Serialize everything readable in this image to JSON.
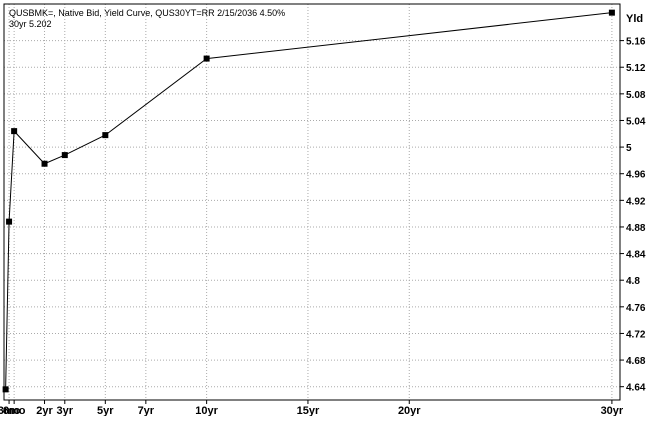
{
  "chart_data": {
    "type": "line",
    "title": "QUSBMK=, Native Bid, Yield Curve, QUS30YT=RR 2/15/2036 4.50%",
    "subtitle": "30yr 5.202",
    "y_unit_label": "Yld",
    "xlabel": "",
    "ylabel": "",
    "x_scale": "years to maturity",
    "xlim": [
      0,
      30.4
    ],
    "ylim": [
      4.62,
      5.215
    ],
    "y_ticks": [
      "5.16",
      "5.12",
      "5.08",
      "5.04",
      "5",
      "4.96",
      "4.92",
      "4.88",
      "4.84",
      "4.8",
      "4.76",
      "4.72",
      "4.68",
      "4.64"
    ],
    "x_ticks": [
      {
        "label": "3mo",
        "years": 0.25
      },
      {
        "label": "6mo",
        "years": 0.5
      },
      {
        "label": "2yr",
        "years": 2
      },
      {
        "label": "3yr",
        "years": 3
      },
      {
        "label": "5yr",
        "years": 5
      },
      {
        "label": "7yr",
        "years": 7
      },
      {
        "label": "10yr",
        "years": 10
      },
      {
        "label": "15yr",
        "years": 15
      },
      {
        "label": "20yr",
        "years": 20
      },
      {
        "label": "30yr",
        "years": 30
      }
    ],
    "series": [
      {
        "points": [
          {
            "x": 0.08,
            "y": 4.636
          },
          {
            "x": 0.25,
            "y": 4.888
          },
          {
            "x": 0.5,
            "y": 5.024
          },
          {
            "x": 2,
            "y": 4.975
          },
          {
            "x": 3,
            "y": 4.988
          },
          {
            "x": 5,
            "y": 5.018
          },
          {
            "x": 10,
            "y": 5.133
          },
          {
            "x": 30,
            "y": 5.202
          }
        ]
      }
    ],
    "grid": true,
    "legend": "none",
    "colors": {
      "line": "#000000",
      "marker": "#000000",
      "grid": "#aaaaaa",
      "frame": "#000000"
    }
  }
}
